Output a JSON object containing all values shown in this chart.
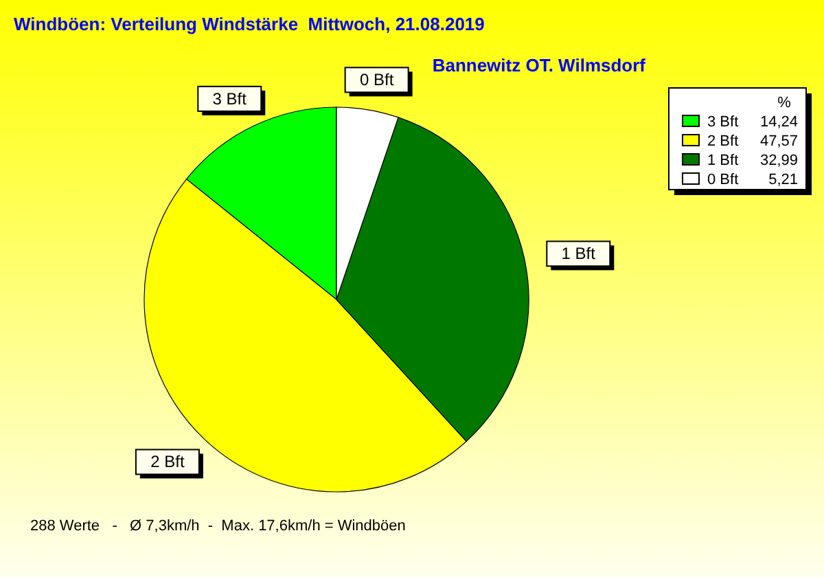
{
  "chart_data": {
    "type": "pie",
    "title": "Windböen: Verteilung Windstärke  Mittwoch, 21.08.2019",
    "subtitle": "Bannewitz OT. Wilmsdorf",
    "categories": [
      "3 Bft",
      "2 Bft",
      "1 Bft",
      "0 Bft"
    ],
    "values": [
      14.24,
      47.57,
      32.99,
      5.21
    ],
    "value_labels": [
      "14,24",
      "47,57",
      "32,99",
      "5,21"
    ],
    "colors": [
      "#00ff00",
      "#ffff00",
      "#007800",
      "#ffffff"
    ],
    "legend": "top right",
    "legend_title": "%",
    "annotations": [
      "288 Werte   -   Ø 7,3km/h  -  Max. 17,6km/h = Windböen"
    ]
  }
}
